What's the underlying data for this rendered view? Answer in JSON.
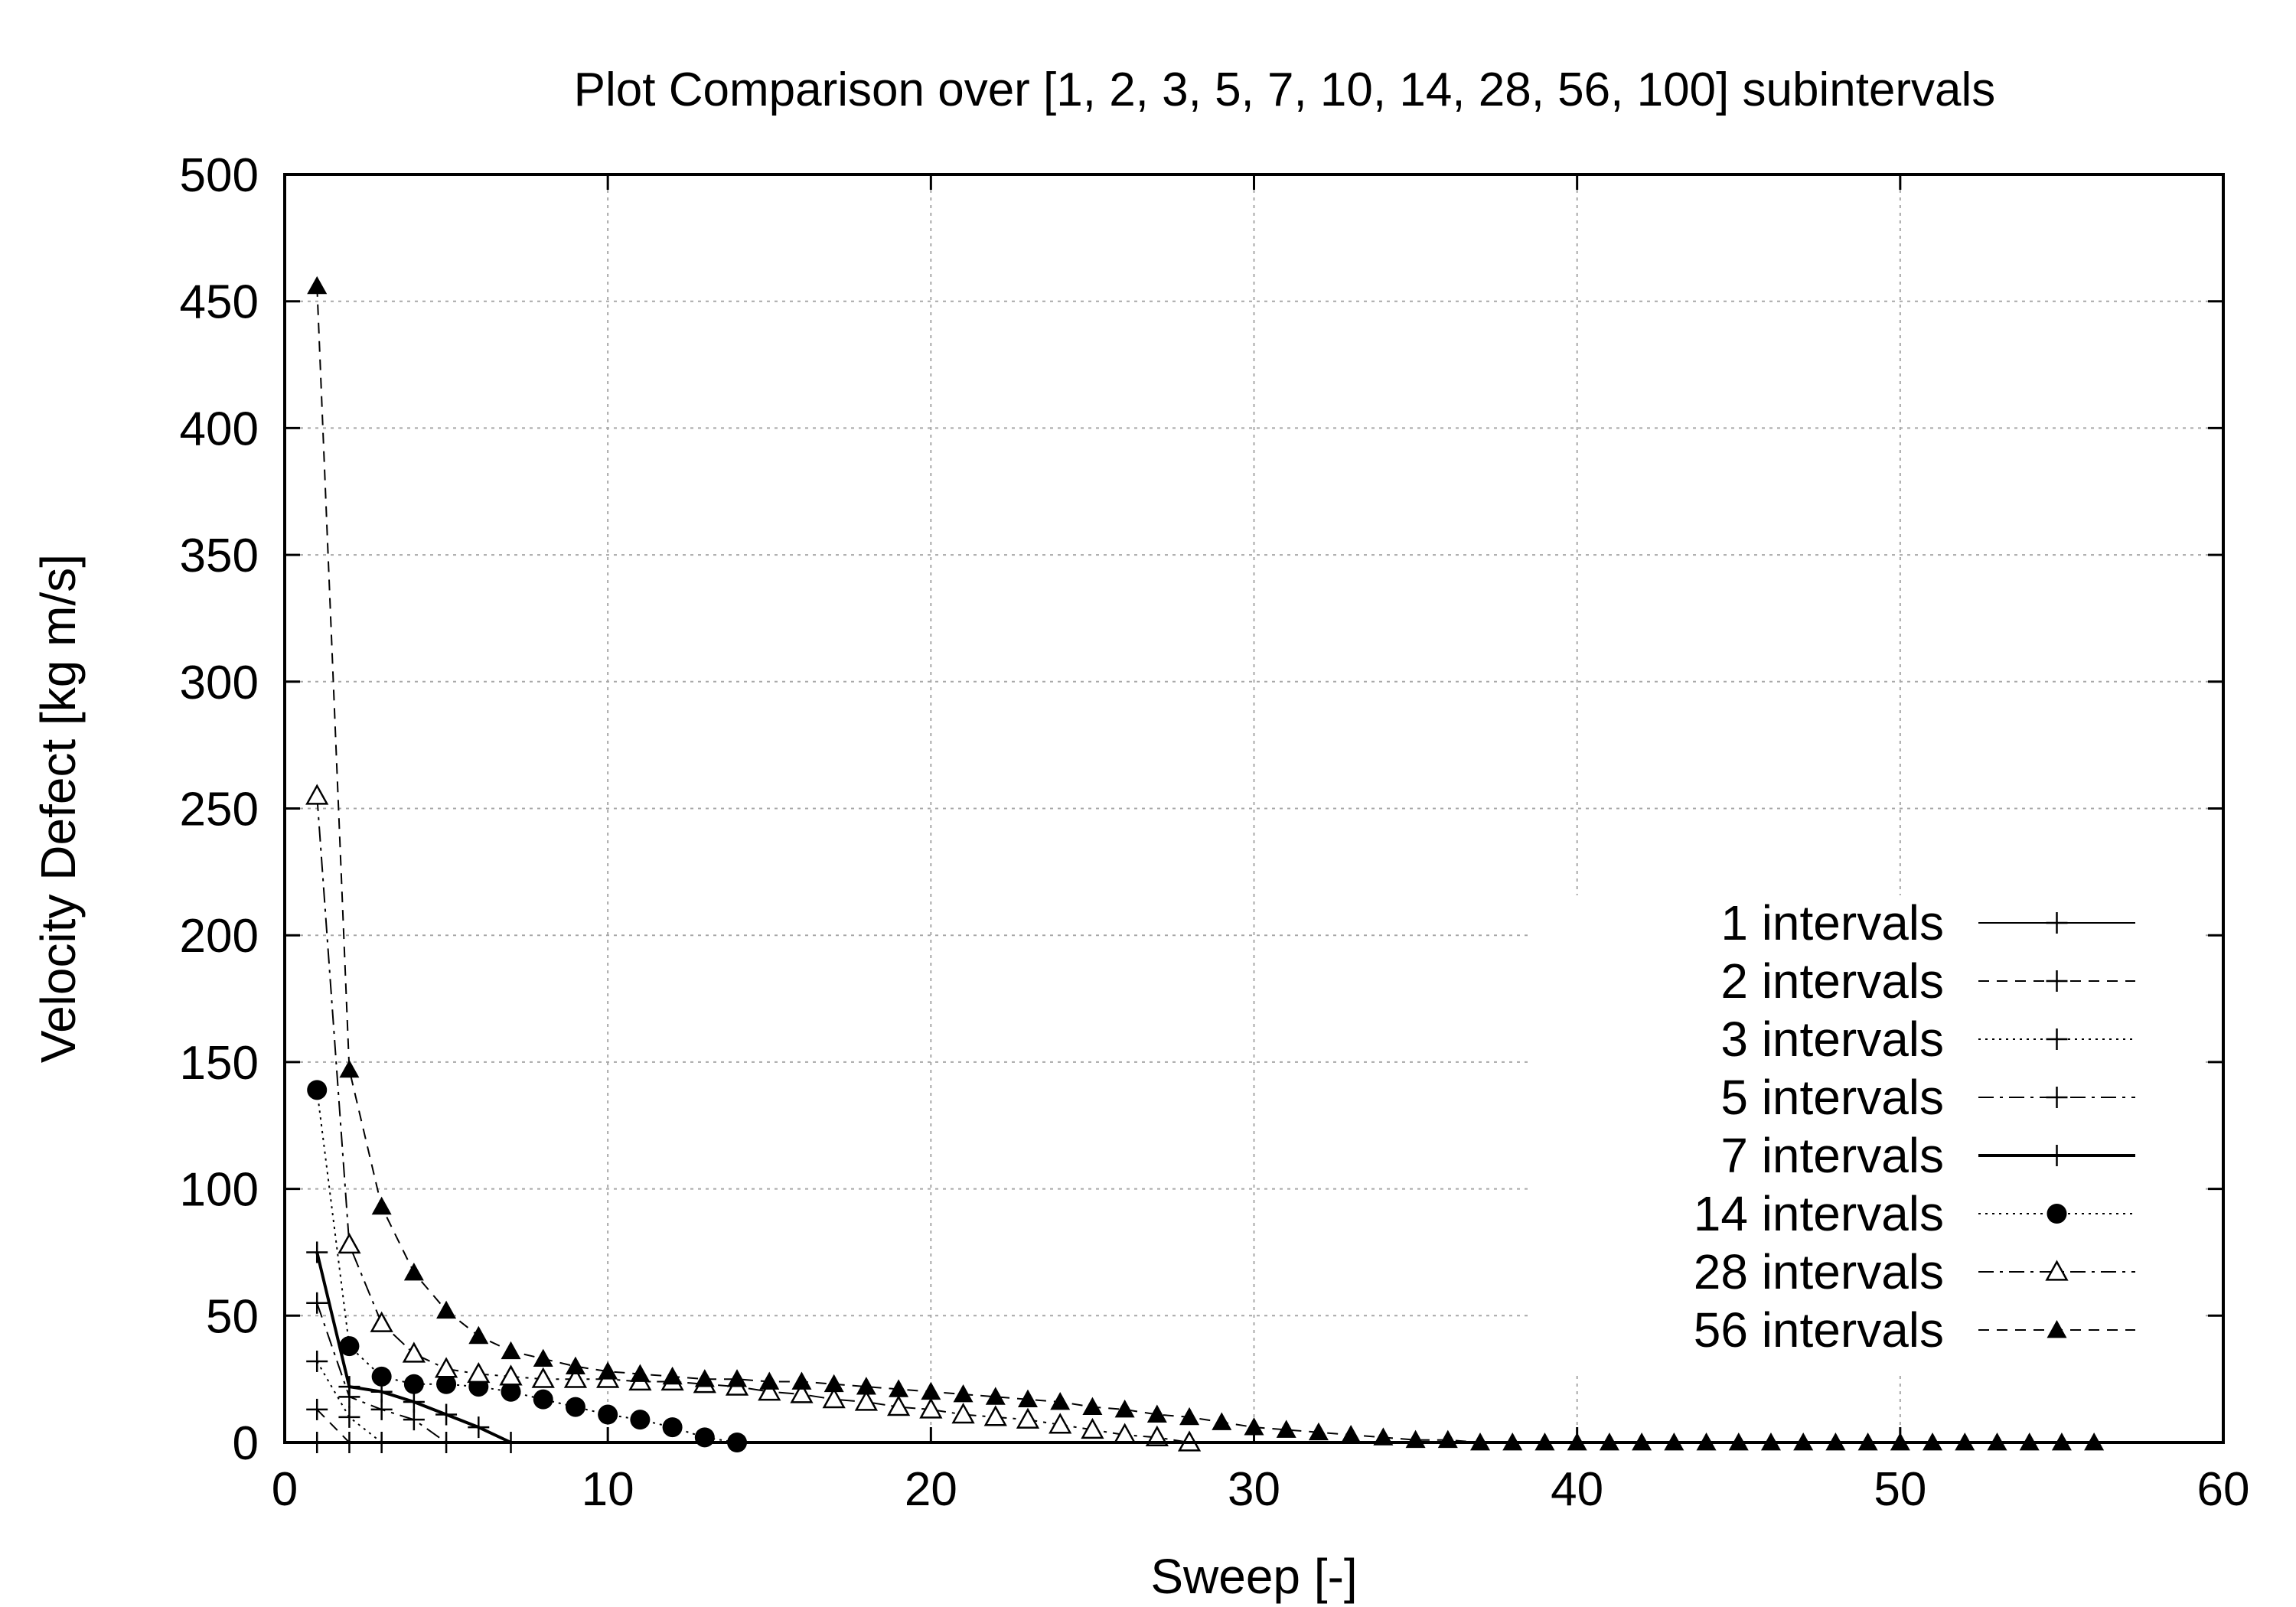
{
  "chart_data": {
    "type": "line",
    "title": "Plot Comparison over [1, 2, 3, 5, 7, 10, 14, 28, 56, 100] subintervals",
    "xlabel": "Sweep [-]",
    "ylabel": "Velocity Defect [kg m/s]",
    "xlim": [
      0,
      60
    ],
    "ylim": [
      0,
      500
    ],
    "xticks": [
      0,
      10,
      20,
      30,
      40,
      50,
      60
    ],
    "yticks": [
      0,
      50,
      100,
      150,
      200,
      250,
      300,
      350,
      400,
      450,
      500
    ],
    "xtick_labels": [
      "0",
      "10",
      "20",
      "30",
      "40",
      "50",
      "60"
    ],
    "ytick_labels": [
      "0",
      "50",
      "100",
      "150",
      "200",
      "250",
      "300",
      "350",
      "400",
      "450",
      "500"
    ],
    "grid": true,
    "legend_position": "right",
    "series": [
      {
        "name": "1 intervals",
        "marker": "plus",
        "dash": "solid",
        "width": 2,
        "x": [
          1
        ],
        "y": [
          0
        ]
      },
      {
        "name": "2 intervals",
        "marker": "plus",
        "dash": "dashed",
        "width": 2,
        "x": [
          1,
          2
        ],
        "y": [
          13,
          0
        ]
      },
      {
        "name": "3 intervals",
        "marker": "plus",
        "dash": "dotted",
        "width": 2,
        "x": [
          1,
          2,
          3
        ],
        "y": [
          32,
          10,
          0
        ]
      },
      {
        "name": "5 intervals",
        "marker": "plus",
        "dash": "dashdot",
        "width": 2,
        "x": [
          1,
          2,
          3,
          4,
          5
        ],
        "y": [
          55,
          18,
          13,
          9,
          0
        ]
      },
      {
        "name": "7 intervals",
        "marker": "plus",
        "dash": "solid",
        "width": 4,
        "x": [
          1,
          2,
          3,
          4,
          5,
          6,
          7
        ],
        "y": [
          75,
          22,
          20,
          16,
          11,
          6,
          0
        ]
      },
      {
        "name": "14 intervals",
        "marker": "circle",
        "dash": "dotted",
        "width": 2,
        "x": [
          1,
          2,
          3,
          4,
          5,
          6,
          7,
          8,
          9,
          10,
          11,
          12,
          13,
          14
        ],
        "y": [
          139,
          38,
          26,
          23,
          23,
          22,
          20,
          17,
          14,
          11,
          9,
          6,
          2,
          0
        ]
      },
      {
        "name": "28 intervals",
        "marker": "triangle-open",
        "dash": "dashdot",
        "width": 2,
        "x": [
          1,
          2,
          3,
          4,
          5,
          6,
          7,
          8,
          9,
          10,
          11,
          12,
          13,
          14,
          15,
          16,
          17,
          18,
          19,
          20,
          21,
          22,
          23,
          24,
          25,
          26,
          27,
          28
        ],
        "y": [
          255,
          78,
          47,
          35,
          29,
          27,
          26,
          25,
          25,
          25,
          24,
          24,
          23,
          22,
          20,
          19,
          17,
          16,
          14,
          13,
          11,
          10,
          9,
          7,
          5,
          3,
          2,
          0
        ]
      },
      {
        "name": "56 intervals",
        "marker": "triangle",
        "dash": "dashed",
        "width": 2,
        "x": [
          1,
          2,
          3,
          4,
          5,
          6,
          7,
          8,
          9,
          10,
          11,
          12,
          13,
          14,
          15,
          16,
          17,
          18,
          19,
          20,
          21,
          22,
          23,
          24,
          25,
          26,
          27,
          28,
          29,
          30,
          31,
          32,
          33,
          34,
          35,
          36,
          37,
          38,
          39,
          40,
          41,
          42,
          43,
          44,
          45,
          46,
          47,
          48,
          49,
          50,
          51,
          52,
          53,
          54,
          55,
          56
        ],
        "y": [
          456,
          147,
          93,
          67,
          52,
          42,
          36,
          33,
          30,
          28,
          27,
          26,
          25,
          25,
          24,
          24,
          23,
          22,
          21,
          20,
          19,
          18,
          17,
          16,
          14,
          13,
          11,
          10,
          8,
          6,
          5,
          4,
          3,
          2,
          1,
          1,
          0,
          0,
          0,
          0,
          0,
          0,
          0,
          0,
          0,
          0,
          0,
          0,
          0,
          0,
          0,
          0,
          0,
          0,
          0,
          0
        ]
      }
    ]
  }
}
